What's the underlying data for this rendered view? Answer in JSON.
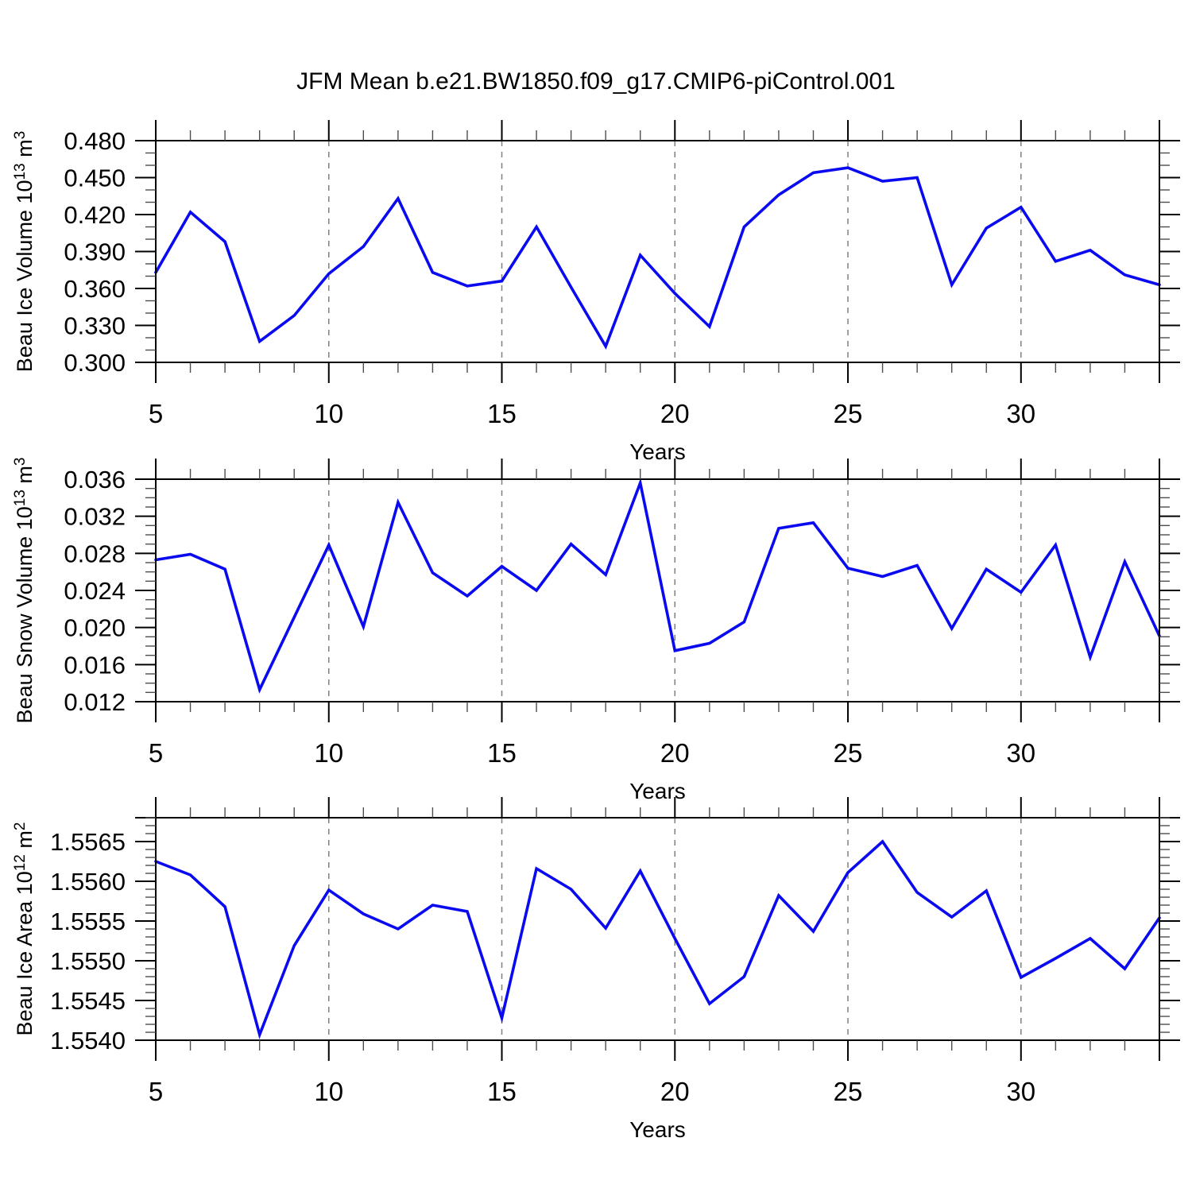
{
  "title": "JFM Mean b.e21.BW1850.f09_g17.CMIP6-piControl.001",
  "colors": {
    "line": "#0a0af0",
    "grid": "#808080",
    "frame": "#000000",
    "minor_tick": "#4d4d4d",
    "text": "#000000",
    "background": "#ffffff"
  },
  "x_axis": {
    "label": "Years",
    "start": 5,
    "end": 34,
    "major_ticks": [
      5,
      10,
      15,
      20,
      25,
      30
    ],
    "major_tick_labels": [
      "5",
      "10",
      "15",
      "20",
      "25",
      "30"
    ],
    "minor_step": 1,
    "gridlines": [
      10,
      15,
      20,
      25,
      30
    ]
  },
  "chart_data": [
    {
      "type": "line",
      "name": "panel-beau-ice-volume",
      "ylabel_plain": "Beau Ice Volume 10^13 m^3",
      "ylabel_parts": [
        {
          "text": "Beau Ice Volume 10",
          "sup": false
        },
        {
          "text": "13",
          "sup": true
        },
        {
          "text": " m",
          "sup": false
        },
        {
          "text": "3",
          "sup": true
        }
      ],
      "xlabel": "Years",
      "x": [
        5,
        6,
        7,
        8,
        9,
        10,
        11,
        12,
        13,
        14,
        15,
        16,
        17,
        18,
        19,
        20,
        21,
        22,
        23,
        24,
        25,
        26,
        27,
        28,
        29,
        30,
        31,
        32,
        33,
        34
      ],
      "values": [
        0.373,
        0.422,
        0.398,
        0.317,
        0.338,
        0.372,
        0.394,
        0.433,
        0.373,
        0.362,
        0.366,
        0.41,
        0.361,
        0.313,
        0.387,
        0.356,
        0.329,
        0.41,
        0.436,
        0.454,
        0.458,
        0.447,
        0.45,
        0.363,
        0.409,
        0.426,
        0.382,
        0.391,
        0.371,
        0.363
      ],
      "ylim": [
        0.3,
        0.48
      ],
      "ytick_values": [
        0.3,
        0.33,
        0.36,
        0.39,
        0.42,
        0.45,
        0.48
      ],
      "ytick_labels": [
        "0.300",
        "0.330",
        "0.360",
        "0.390",
        "0.420",
        "0.450",
        "0.480"
      ],
      "yminor_step": 0.01,
      "grid": "vertical-dashed",
      "legend": "none"
    },
    {
      "type": "line",
      "name": "panel-beau-snow-volume",
      "ylabel_plain": "Beau Snow Volume 10^13 m^3",
      "ylabel_parts": [
        {
          "text": "Beau Snow Volume 10",
          "sup": false
        },
        {
          "text": "13",
          "sup": true
        },
        {
          "text": " m",
          "sup": false
        },
        {
          "text": "3",
          "sup": true
        }
      ],
      "xlabel": "Years",
      "x": [
        5,
        6,
        7,
        8,
        9,
        10,
        11,
        12,
        13,
        14,
        15,
        16,
        17,
        18,
        19,
        20,
        21,
        22,
        23,
        24,
        25,
        26,
        27,
        28,
        29,
        30,
        31,
        32,
        33,
        34
      ],
      "values": [
        0.0273,
        0.0279,
        0.0263,
        0.0133,
        0.0211,
        0.0289,
        0.0201,
        0.0335,
        0.0259,
        0.0234,
        0.0266,
        0.024,
        0.029,
        0.0257,
        0.0356,
        0.0175,
        0.0183,
        0.0206,
        0.0307,
        0.0313,
        0.0264,
        0.0255,
        0.0267,
        0.0199,
        0.0263,
        0.0238,
        0.0289,
        0.0168,
        0.0271,
        0.0191
      ],
      "ylim": [
        0.012,
        0.036
      ],
      "ytick_values": [
        0.012,
        0.016,
        0.02,
        0.024,
        0.028,
        0.032,
        0.036
      ],
      "ytick_labels": [
        "0.012",
        "0.016",
        "0.020",
        "0.024",
        "0.028",
        "0.032",
        "0.036"
      ],
      "yminor_step": 0.001,
      "grid": "vertical-dashed",
      "legend": "none"
    },
    {
      "type": "line",
      "name": "panel-beau-ice-area",
      "ylabel_plain": "Beau Ice Area 10^12 m^2",
      "ylabel_parts": [
        {
          "text": "Beau Ice Area 10",
          "sup": false
        },
        {
          "text": "12",
          "sup": true
        },
        {
          "text": " m",
          "sup": false
        },
        {
          "text": "2",
          "sup": true
        }
      ],
      "xlabel": "Years",
      "x": [
        5,
        6,
        7,
        8,
        9,
        10,
        11,
        12,
        13,
        14,
        15,
        16,
        17,
        18,
        19,
        20,
        21,
        22,
        23,
        24,
        25,
        26,
        27,
        28,
        29,
        30,
        31,
        32,
        33,
        34
      ],
      "values": [
        1.55625,
        1.55608,
        1.55568,
        1.55407,
        1.55519,
        1.55589,
        1.55559,
        1.5554,
        1.5557,
        1.55562,
        1.55428,
        1.55616,
        1.5559,
        1.55541,
        1.55613,
        1.55528,
        1.55446,
        1.5548,
        1.55582,
        1.55537,
        1.55611,
        1.5565,
        1.55586,
        1.55555,
        1.55588,
        1.55479,
        1.55503,
        1.55528,
        1.5549,
        1.55554
      ],
      "ylim": [
        1.554,
        1.5568
      ],
      "ytick_values": [
        1.554,
        1.5545,
        1.555,
        1.5555,
        1.556,
        1.5565
      ],
      "ytick_labels": [
        "1.5540",
        "1.5545",
        "1.5550",
        "1.5555",
        "1.5560",
        "1.5565"
      ],
      "yminor_step": 0.0001,
      "grid": "vertical-dashed",
      "legend": "none"
    }
  ]
}
